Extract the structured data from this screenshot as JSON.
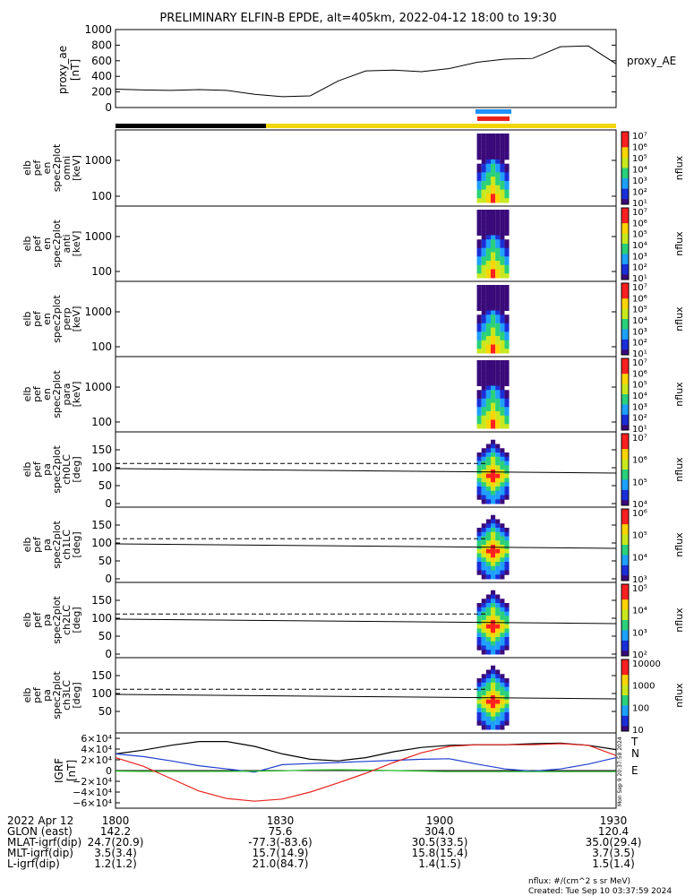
{
  "title": "PRELIMINARY ELFIN-B EPDE, alt=405km, 2022-04-12 18:00 to 19:30",
  "colors": {
    "black": "#000000",
    "sci_zone": "#f2d600",
    "orbit_black": "#000000",
    "marker_blue": "#1e90ff",
    "marker_red": "#e8231e",
    "bz": "#e8231e",
    "bn": "#2040d0",
    "be": "#22bb22"
  },
  "chart_data": [
    {
      "type": "line",
      "ylabel": "proxy_ae [nT]",
      "legend": "proxy_AE",
      "ylim": [
        0,
        1000
      ],
      "yticks": [
        "0",
        "200",
        "400",
        "600",
        "800",
        "1000"
      ],
      "t": [
        0,
        5,
        10,
        15,
        20,
        25,
        30,
        35,
        40,
        45,
        50,
        55,
        60,
        65,
        70,
        75,
        80,
        85,
        90
      ],
      "values": [
        235,
        225,
        220,
        230,
        220,
        170,
        140,
        150,
        340,
        470,
        480,
        460,
        500,
        580,
        620,
        630,
        780,
        790,
        560
      ]
    },
    {
      "type": "heatmap",
      "ylabel": [
        "elb",
        "pef",
        "en",
        "spec2plot",
        "omni",
        "[keV]"
      ],
      "yticks": [
        "100",
        "1000"
      ],
      "cbar_ticks": [
        "10¹",
        "10²",
        "10³",
        "10⁴",
        "10⁵",
        "10⁶",
        "10⁷"
      ],
      "cbar_label": "nflux"
    },
    {
      "type": "heatmap",
      "ylabel": [
        "elb",
        "pef",
        "en",
        "spec2plot",
        "anti",
        "[keV]"
      ],
      "yticks": [
        "100",
        "1000"
      ],
      "cbar_ticks": [
        "10¹",
        "10²",
        "10³",
        "10⁴",
        "10⁵",
        "10⁶",
        "10⁷"
      ],
      "cbar_label": "nflux"
    },
    {
      "type": "heatmap",
      "ylabel": [
        "elb",
        "pef",
        "en",
        "spec2plot",
        "perp",
        "[keV]"
      ],
      "yticks": [
        "100",
        "1000"
      ],
      "cbar_ticks": [
        "10¹",
        "10²",
        "10³",
        "10⁴",
        "10⁵",
        "10⁶",
        "10⁷"
      ],
      "cbar_label": "nflux"
    },
    {
      "type": "heatmap",
      "ylabel": [
        "elb",
        "pef",
        "en",
        "spec2plot",
        "para",
        "[keV]"
      ],
      "yticks": [
        "100",
        "1000"
      ],
      "cbar_ticks": [
        "10¹",
        "10²",
        "10³",
        "10⁴",
        "10⁵",
        "10⁶",
        "10⁷"
      ],
      "cbar_label": "nflux"
    },
    {
      "type": "heatmap",
      "ylabel": [
        "elb",
        "pef",
        "pa",
        "spec2plot",
        "ch0LC",
        "[deg]"
      ],
      "yticks": [
        "0",
        "50",
        "100",
        "150"
      ],
      "cbar_ticks": [
        "10⁴",
        "10⁵",
        "10⁶",
        "10⁷"
      ],
      "cbar_label": "nflux"
    },
    {
      "type": "heatmap",
      "ylabel": [
        "elb",
        "pef",
        "pa",
        "spec2plot",
        "ch1LC",
        "[deg]"
      ],
      "yticks": [
        "0",
        "50",
        "100",
        "150"
      ],
      "cbar_ticks": [
        "10³",
        "10⁴",
        "10⁵",
        "10⁶"
      ],
      "cbar_label": "nflux"
    },
    {
      "type": "heatmap",
      "ylabel": [
        "elb",
        "pef",
        "pa",
        "spec2plot",
        "ch2LC",
        "[deg]"
      ],
      "yticks": [
        "0",
        "50",
        "100",
        "150"
      ],
      "cbar_ticks": [
        "10²",
        "10³",
        "10⁴",
        "10⁵"
      ],
      "cbar_label": "nflux"
    },
    {
      "type": "heatmap",
      "ylabel": [
        "elb",
        "pef",
        "pa",
        "spec2plot",
        "ch3LC",
        "[deg]"
      ],
      "yticks": [
        "50",
        "100",
        "150"
      ],
      "cbar_ticks": [
        "10",
        "100",
        "1000",
        "10000"
      ],
      "cbar_label": "nflux"
    },
    {
      "type": "line",
      "ylabel": "IGRF [nT]",
      "ylim": [
        -60000,
        60000
      ],
      "yticks": [
        "−6×10⁴",
        "−4×10⁴",
        "−2×10⁴",
        "0",
        "2×10⁴",
        "4×10⁴",
        "6×10⁴"
      ],
      "t": [
        0,
        5,
        10,
        15,
        20,
        25,
        30,
        35,
        40,
        45,
        50,
        55,
        60,
        65,
        70,
        75,
        80,
        85,
        90
      ],
      "series": [
        {
          "name": "T",
          "values": [
            31000,
            38000,
            47000,
            54000,
            54000,
            45000,
            31000,
            21000,
            18000,
            24000,
            35000,
            43000,
            47000,
            48000,
            48000,
            50000,
            51000,
            47000,
            39000
          ]
        },
        {
          "name": "N",
          "values": [
            31000,
            26000,
            18000,
            9000,
            3000,
            -3000,
            11000,
            13000,
            15000,
            17000,
            19000,
            21000,
            22000,
            12000,
            3000,
            -1000,
            3000,
            12000,
            24000
          ]
        },
        {
          "name": "E",
          "values": [
            -1000,
            -1500,
            -1500,
            -1500,
            -1500,
            -1000,
            -500,
            1000,
            1500,
            1000,
            0,
            -1000,
            -2000,
            -2000,
            -2000,
            -2000,
            -2000,
            -2000,
            -2000
          ]
        },
        {
          "name": "Z",
          "values": [
            24000,
            8000,
            -15000,
            -38000,
            -52000,
            -57000,
            -53000,
            -40000,
            -23000,
            -5000,
            15000,
            33000,
            45000,
            48000,
            48000,
            48000,
            50000,
            47000,
            28000
          ]
        }
      ]
    }
  ],
  "side_labels": {
    "proxy_ae": "proxy_AE",
    "T": "T",
    "N": "N",
    "E": "E",
    "created_vertical": "Mon Sep 9 20:37:58 2024"
  },
  "ephem": {
    "rows": [
      {
        "label": "2022 Apr 12",
        "values": [
          "1800",
          "1830",
          "1900",
          "1930"
        ]
      },
      {
        "label": "GLON (east)",
        "values": [
          "142.2",
          "75.6",
          "304.0",
          "120.4"
        ]
      },
      {
        "label": "MLAT-igrf(dip)",
        "values": [
          "24.7(20.9)",
          "-77.3(-83.6)",
          "30.5(33.5)",
          "35.0(29.4)"
        ]
      },
      {
        "label": "MLT-igrf(dip)",
        "values": [
          "3.5(3.4)",
          "15.7(14.9)",
          "15.8(15.4)",
          "3.7(3.5)"
        ]
      },
      {
        "label": "L-igrf(dip)",
        "values": [
          "1.2(1.2)",
          "21.0(84.7)",
          "1.4(1.5)",
          "1.5(1.4)"
        ]
      }
    ]
  },
  "footer": {
    "units": "nflux: #/(cm^2 s sr MeV)",
    "created": "Created: Tue Sep 10 03:37:59 2024"
  }
}
